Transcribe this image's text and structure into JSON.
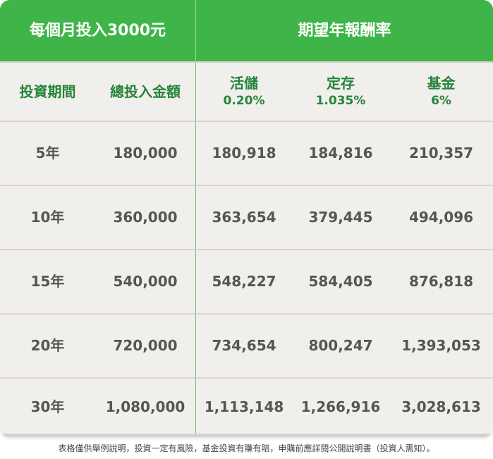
{
  "chart_data": {
    "type": "table",
    "title_left": "每個月投入3000元",
    "title_right": "期望年報酬率",
    "columns": [
      {
        "label": "投資期間"
      },
      {
        "label": "總投入金額"
      },
      {
        "label": "活儲",
        "rate": "0.20%"
      },
      {
        "label": "定存",
        "rate": "1.035%"
      },
      {
        "label": "基金",
        "rate": "6%"
      }
    ],
    "rows": [
      [
        "5年",
        "180,000",
        "180,918",
        "184,816",
        "210,357"
      ],
      [
        "10年",
        "360,000",
        "363,654",
        "379,445",
        "494,096"
      ],
      [
        "15年",
        "540,000",
        "548,227",
        "584,405",
        "876,818"
      ],
      [
        "20年",
        "720,000",
        "734,654",
        "800,247",
        "1,393,053"
      ],
      [
        "30年",
        "1,080,000",
        "1,113,148",
        "1,266,916",
        "3,028,613"
      ]
    ]
  },
  "colors": {
    "header_green": "#3fb549",
    "subheader_text": "#26843a",
    "body_text": "#555555",
    "background": "#f1efec"
  },
  "footnote": "表格僅供舉例說明，投資一定有風險，基金投資有賺有賠，申購前應詳閱公開說明書（投資人需知）。"
}
